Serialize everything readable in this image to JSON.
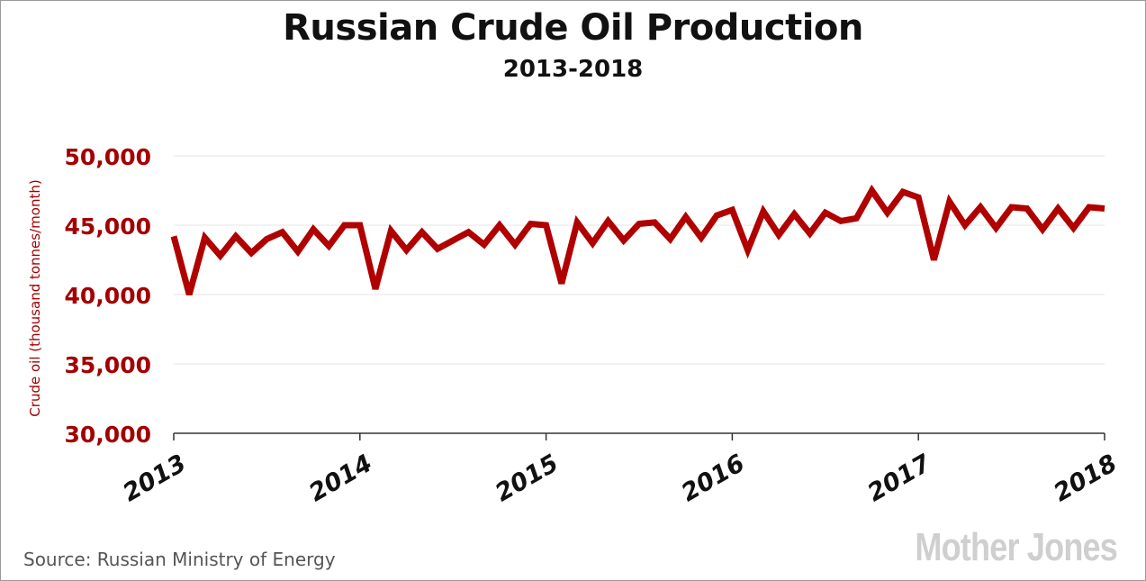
{
  "title": "Russian Crude Oil Production",
  "subtitle": "2013-2018",
  "source": "Source: Russian Ministry of Energy",
  "logo": "Mother Jones",
  "colors": {
    "line": "#b00000",
    "tick_label": "#a30000",
    "axis": "#333333",
    "grid": "#e6e6e6"
  },
  "chart_data": {
    "type": "line",
    "title": "Russian Crude Oil Production",
    "subtitle": "2013-2018",
    "ylabel": "Crude oil (thousand tonnes/month)",
    "xlabel": "",
    "xlim": [
      2013,
      2018
    ],
    "ylim": [
      30000,
      50000
    ],
    "x_ticks": [
      "2013",
      "2014",
      "2015",
      "2016",
      "2017",
      "2018"
    ],
    "y_ticks": [
      "30,000",
      "35,000",
      "40,000",
      "45,000",
      "50,000"
    ],
    "y_tick_values": [
      30000,
      35000,
      40000,
      45000,
      50000
    ],
    "grid": true,
    "series": [
      {
        "values": [
          44200,
          40000,
          44100,
          42800,
          44200,
          43000,
          44000,
          44500,
          43100,
          44700,
          43500,
          45000,
          45000,
          40400,
          44600,
          43200,
          44500,
          43300,
          43900,
          44500,
          43600,
          45000,
          43600,
          45100,
          45000,
          40800,
          45200,
          43700,
          45300,
          43900,
          45100,
          45200,
          44000,
          45600,
          44100,
          45700,
          46100,
          43200,
          46000,
          44300,
          45800,
          44400,
          45900,
          45300,
          45500,
          47500,
          45900,
          47400,
          47000,
          42500,
          46700,
          45000,
          46300,
          44800,
          46300,
          46200,
          44700,
          46200,
          44800,
          46300,
          46200
        ]
      }
    ]
  }
}
